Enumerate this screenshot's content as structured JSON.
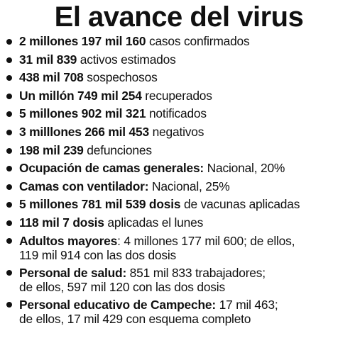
{
  "title": "El avance del virus",
  "items": [
    {
      "bold": "2 millones 197 mil 160",
      "rest": " casos confirmados"
    },
    {
      "bold": "31 mil 839",
      "rest": " activos estimados"
    },
    {
      "bold": "438 mil 708",
      "rest": " sospechosos"
    },
    {
      "bold": "Un millón 749 mil 254",
      "rest": " recuperados"
    },
    {
      "bold": "5 millones 902 mil 321",
      "rest": " notificados"
    },
    {
      "bold": "3 milllones 266 mil 453",
      "rest": " negativos"
    },
    {
      "bold": "198 mil 239",
      "rest": " defunciones"
    },
    {
      "bold": "Ocupación de camas generales:",
      "rest": " Nacional, 20%"
    },
    {
      "bold": "Camas con ventilador:",
      "rest": " Nacional, 25%"
    },
    {
      "bold": "5 millones 781 mil 539 dosis",
      "rest": " de vacunas aplicadas"
    },
    {
      "bold": "118 mil 7 dosis",
      "rest": " aplicadas el lunes"
    },
    {
      "bold": "Adultos mayores",
      "rest": ": 4 millones 177 mil 600; de ellos,",
      "line2": "119 mil 914 con las dos dosis"
    },
    {
      "bold": "Personal de salud:",
      "rest": " 851 mil 833 trabajadores;",
      "line2": "de ellos, 597 mil 120 con las dos dosis"
    },
    {
      "bold": "Personal educativo de Campeche:",
      "rest": " 17 mil 463;",
      "line2": "de ellos, 17 mil 429 con esquema completo"
    }
  ]
}
